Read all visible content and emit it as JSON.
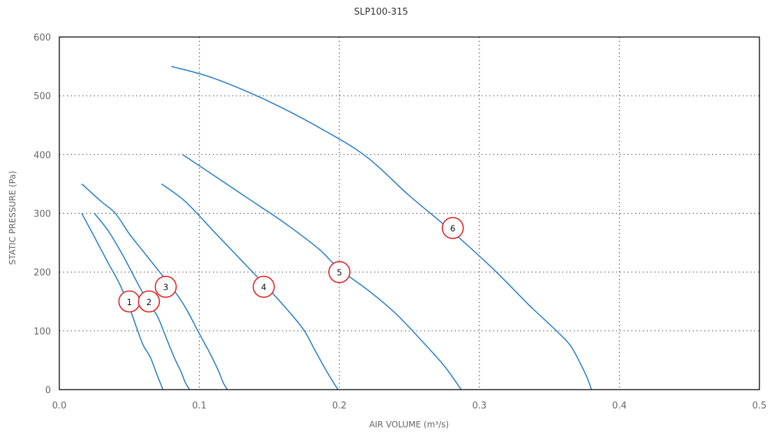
{
  "chart_data": {
    "type": "line",
    "title": "SLP100-315",
    "xlabel": "AIR VOLUME (m³/s)",
    "ylabel": "STATIC PRESSURE (Pa)",
    "xlim": [
      0,
      0.5
    ],
    "ylim": [
      0,
      600
    ],
    "x_ticks": [
      0.0,
      0.1,
      0.2,
      0.3,
      0.4,
      0.5
    ],
    "x_tick_labels": [
      "0.0",
      "0.1",
      "0.2",
      "0.3",
      "0.4",
      "0.5"
    ],
    "y_ticks": [
      0,
      100,
      200,
      300,
      400,
      500,
      600
    ],
    "y_tick_labels": [
      "0",
      "100",
      "200",
      "300",
      "400",
      "500",
      "600"
    ],
    "grid": true,
    "line_color": "#2a7fc6",
    "marker_color": "#e02020",
    "series": [
      {
        "label": "1",
        "x": [
          0.016,
          0.025,
          0.035,
          0.043,
          0.05,
          0.056,
          0.06,
          0.065,
          0.069,
          0.072,
          0.074
        ],
        "y": [
          300,
          260,
          215,
          180,
          140,
          100,
          75,
          55,
          30,
          12,
          0
        ],
        "marker": [
          0.05,
          150
        ]
      },
      {
        "label": "2",
        "x": [
          0.025,
          0.035,
          0.045,
          0.055,
          0.063,
          0.07,
          0.076,
          0.082,
          0.087,
          0.09,
          0.093
        ],
        "y": [
          300,
          270,
          230,
          185,
          150,
          125,
          90,
          55,
          30,
          12,
          0
        ],
        "marker": [
          0.064,
          150
        ]
      },
      {
        "label": "3",
        "x": [
          0.016,
          0.03,
          0.04,
          0.05,
          0.06,
          0.07,
          0.08,
          0.09,
          0.1,
          0.108,
          0.114,
          0.117,
          0.12
        ],
        "y": [
          350,
          320,
          300,
          265,
          235,
          205,
          175,
          140,
          95,
          60,
          30,
          12,
          0
        ],
        "marker": [
          0.076,
          175
        ]
      },
      {
        "label": "4",
        "x": [
          0.073,
          0.09,
          0.11,
          0.13,
          0.15,
          0.165,
          0.175,
          0.183,
          0.19,
          0.195,
          0.199
        ],
        "y": [
          350,
          320,
          270,
          220,
          170,
          130,
          100,
          65,
          35,
          15,
          0
        ],
        "marker": [
          0.146,
          175
        ]
      },
      {
        "label": "5",
        "x": [
          0.088,
          0.11,
          0.135,
          0.16,
          0.185,
          0.2,
          0.22,
          0.24,
          0.26,
          0.275,
          0.287
        ],
        "y": [
          400,
          365,
          325,
          285,
          240,
          205,
          170,
          130,
          80,
          40,
          0
        ],
        "marker": [
          0.2,
          200
        ]
      },
      {
        "label": "6",
        "x": [
          0.08,
          0.11,
          0.15,
          0.19,
          0.22,
          0.25,
          0.28,
          0.31,
          0.335,
          0.355,
          0.365,
          0.372,
          0.377,
          0.38
        ],
        "y": [
          550,
          530,
          490,
          440,
          395,
          330,
          270,
          205,
          145,
          100,
          75,
          45,
          20,
          0
        ],
        "marker": [
          0.281,
          275
        ]
      }
    ]
  }
}
